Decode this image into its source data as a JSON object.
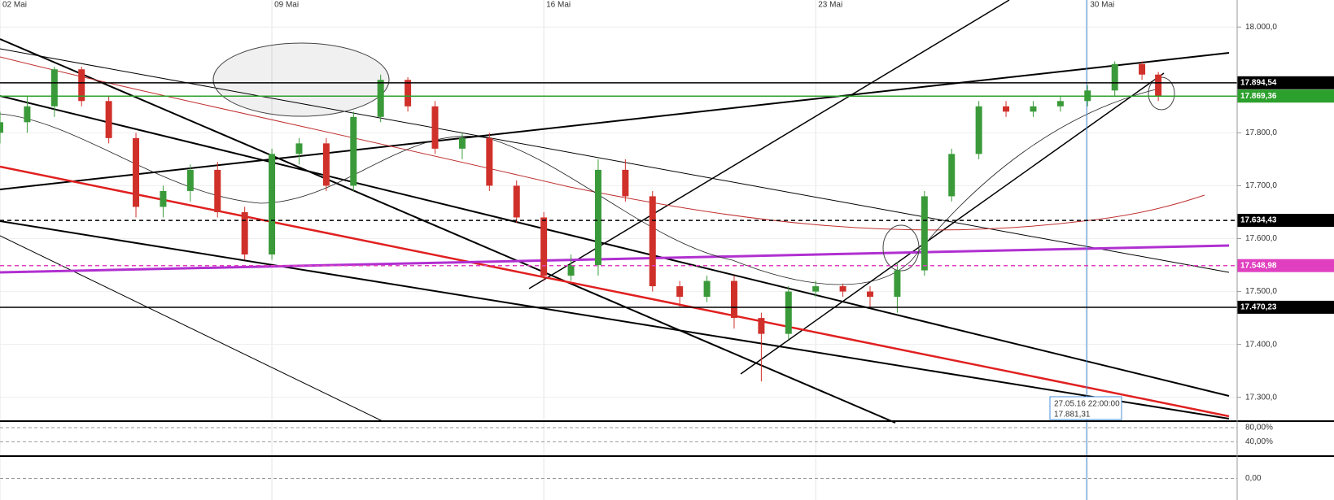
{
  "chart_data": {
    "type": "candlestick",
    "up_color": "#3a9a3a",
    "down_color": "#d0302a",
    "xlim": [
      0,
      22.75
    ],
    "xticks": [
      {
        "value": 0,
        "label": "02 Mai"
      },
      {
        "value": 5,
        "label": "09 Mai"
      },
      {
        "value": 10,
        "label": "16 Mai"
      },
      {
        "value": 15,
        "label": "23 Mai"
      },
      {
        "value": 20,
        "label": "30 Mai"
      }
    ],
    "ylim": [
      17255,
      18051
    ],
    "yticks": [
      {
        "value": 18000,
        "label": "18.000,0"
      },
      {
        "value": 17800,
        "label": "17.800,0"
      },
      {
        "value": 17700,
        "label": "17.700,0"
      },
      {
        "value": 17600,
        "label": "17.600,0"
      },
      {
        "value": 17500,
        "label": "17.500,0"
      },
      {
        "value": 17400,
        "label": "17.400,0"
      },
      {
        "value": 17300,
        "label": "17.300,0"
      }
    ],
    "grid": true,
    "x": [
      0,
      0.5,
      1,
      1.5,
      2,
      2.5,
      3,
      3.5,
      4,
      4.5,
      5,
      5.5,
      6,
      6.5,
      7,
      7.5,
      8,
      8.5,
      9,
      9.5,
      10,
      10.5,
      11,
      11.5,
      12,
      12.5,
      13,
      13.5,
      14,
      14.5,
      15,
      15.5,
      16,
      16.5,
      17,
      17.5,
      18,
      18.5,
      19,
      19.5,
      20,
      20.5,
      21,
      21.3
    ],
    "open": [
      17800,
      17820,
      17850,
      17920,
      17860,
      17790,
      17660,
      17690,
      17730,
      17650,
      17570,
      17760,
      17780,
      17700,
      17830,
      17900,
      17850,
      17770,
      17790,
      17700,
      17640,
      17530,
      17550,
      17730,
      17680,
      17510,
      17490,
      17520,
      17450,
      17420,
      17500,
      17510,
      17500,
      17490,
      17540,
      17680,
      17760,
      17850,
      17840,
      17850,
      17860,
      17880,
      17930,
      17910
    ],
    "high": [
      17840,
      17870,
      17925,
      17925,
      17870,
      17800,
      17700,
      17740,
      17745,
      17660,
      17770,
      17790,
      17790,
      17840,
      17910,
      17905,
      17860,
      17800,
      17800,
      17710,
      17650,
      17570,
      17750,
      17750,
      17690,
      17520,
      17530,
      17530,
      17460,
      17510,
      17520,
      17515,
      17510,
      17555,
      17690,
      17770,
      17860,
      17860,
      17860,
      17870,
      17890,
      17935,
      17935,
      17915
    ],
    "low": [
      17780,
      17800,
      17830,
      17850,
      17780,
      17640,
      17640,
      17670,
      17640,
      17560,
      17560,
      17740,
      17690,
      17690,
      17820,
      17840,
      17760,
      17750,
      17690,
      17630,
      17520,
      17520,
      17530,
      17670,
      17500,
      17470,
      17480,
      17430,
      17330,
      17410,
      17490,
      17490,
      17470,
      17460,
      17530,
      17670,
      17750,
      17830,
      17830,
      17840,
      17850,
      17870,
      17900,
      17860
    ],
    "close": [
      17820,
      17850,
      17920,
      17860,
      17790,
      17660,
      17690,
      17730,
      17650,
      17570,
      17760,
      17780,
      17700,
      17830,
      17900,
      17850,
      17770,
      17790,
      17700,
      17640,
      17530,
      17550,
      17730,
      17680,
      17510,
      17490,
      17520,
      17450,
      17420,
      17500,
      17510,
      17500,
      17490,
      17540,
      17680,
      17760,
      17850,
      17840,
      17850,
      17860,
      17880,
      17930,
      17910,
      17869
    ],
    "price_lines": [
      {
        "value": 17894.54,
        "label": "17.894,54",
        "color": "#000000",
        "dash": false
      },
      {
        "value": 17869.36,
        "label": "17.869,36",
        "color": "#2ca02c",
        "dash": false
      },
      {
        "value": 17634.43,
        "label": "17.634,43",
        "color": "#000000",
        "dash": true
      },
      {
        "value": 17548.98,
        "label": "17.548,98",
        "color": "#e040c0",
        "dash": true
      },
      {
        "value": 17470.23,
        "label": "17.470,23",
        "color": "#000000",
        "dash": false
      }
    ],
    "tooltip": {
      "date": "27.05.16 22:00:00",
      "value": "17.881,31"
    },
    "rsi_panel": {
      "ylim": [
        2,
        96
      ],
      "yticks": [
        {
          "value": 80,
          "label": "80,00%"
        },
        {
          "value": 40,
          "label": "40,00%"
        }
      ]
    },
    "macd_panel": {
      "ylim": [
        -1,
        1
      ],
      "yticks": [
        {
          "value": 0,
          "label": "0,00"
        }
      ]
    }
  }
}
